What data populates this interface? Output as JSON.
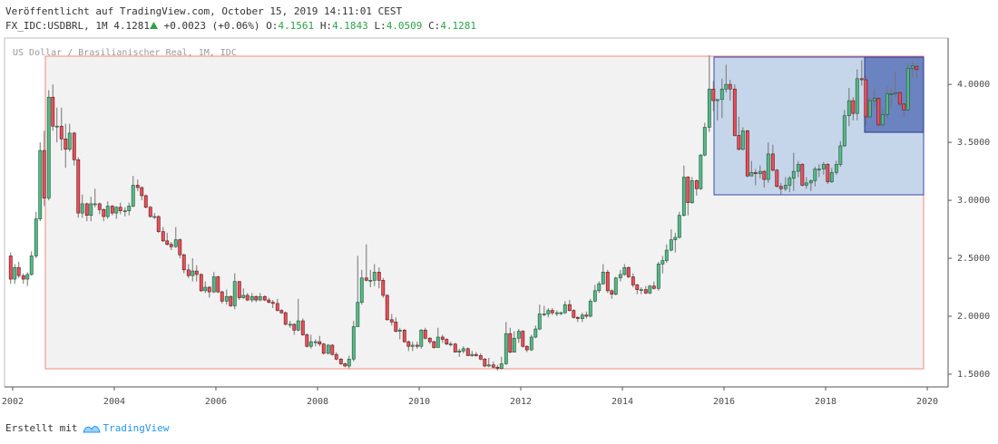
{
  "header": {
    "published": "Veröffentlicht auf TradingView.com, October 15, 2019 14:11:01 CEST",
    "symbol": "FX_IDC:USDBRL, 1M",
    "last": "4.1281",
    "change": "+0.0023 (+0.06%)",
    "o_label": "O:",
    "open": "4.1561",
    "h_label": "H:",
    "high": "4.1843",
    "l_label": "L:",
    "low": "4.0509",
    "c_label": "C:",
    "close": "4.1281"
  },
  "footer": {
    "made_with": "Erstellt mit",
    "brand": "TradingView"
  },
  "chart_data": {
    "type": "candlestick",
    "title": "US Dollar / Brasilianischer Real, 1M, IDC",
    "up_color": "#53b987",
    "down_color": "#eb4d5c",
    "grid": false,
    "xlim": [
      2001.84,
      2020.41
    ],
    "xticks": [
      2002,
      2004,
      2006,
      2008,
      2010,
      2012,
      2014,
      2016,
      2018,
      2020
    ],
    "ylim": [
      1.39,
      4.4
    ],
    "yticks": [
      {
        "value": 1.5,
        "label": "1.5000"
      },
      {
        "value": 2,
        "label": "2.0000"
      },
      {
        "value": 2.5,
        "label": "2.5000"
      },
      {
        "value": 3,
        "label": "3.0000"
      },
      {
        "value": 3.5,
        "label": "3.5000"
      },
      {
        "value": 4,
        "label": "4.0000"
      }
    ],
    "x": [
      2001.92,
      2002.0,
      2002.08,
      2002.17,
      2002.25,
      2002.33,
      2002.42,
      2002.5,
      2002.58,
      2002.67,
      2002.75,
      2002.83,
      2002.92,
      2003.0,
      2003.08,
      2003.17,
      2003.25,
      2003.33,
      2003.42,
      2003.5,
      2003.58,
      2003.67,
      2003.75,
      2003.83,
      2003.92,
      2004.0,
      2004.08,
      2004.17,
      2004.25,
      2004.33,
      2004.42,
      2004.5,
      2004.58,
      2004.67,
      2004.75,
      2004.83,
      2004.92,
      2005.0,
      2005.08,
      2005.17,
      2005.25,
      2005.33,
      2005.42,
      2005.5,
      2005.58,
      2005.67,
      2005.75,
      2005.83,
      2005.92,
      2006.0,
      2006.08,
      2006.17,
      2006.25,
      2006.33,
      2006.42,
      2006.5,
      2006.58,
      2006.67,
      2006.75,
      2006.83,
      2006.92,
      2007.0,
      2007.08,
      2007.17,
      2007.25,
      2007.33,
      2007.42,
      2007.5,
      2007.58,
      2007.67,
      2007.75,
      2007.83,
      2007.92,
      2008.0,
      2008.08,
      2008.17,
      2008.25,
      2008.33,
      2008.42,
      2008.5,
      2008.58,
      2008.67,
      2008.75,
      2008.83,
      2008.92,
      2009.0,
      2009.08,
      2009.17,
      2009.25,
      2009.33,
      2009.42,
      2009.5,
      2009.58,
      2009.67,
      2009.75,
      2009.83,
      2009.92,
      2010.0,
      2010.08,
      2010.17,
      2010.25,
      2010.33,
      2010.42,
      2010.5,
      2010.58,
      2010.67,
      2010.75,
      2010.83,
      2010.92,
      2011.0,
      2011.08,
      2011.17,
      2011.25,
      2011.33,
      2011.42,
      2011.5,
      2011.58,
      2011.67,
      2011.75,
      2011.83,
      2011.92,
      2012.0,
      2012.08,
      2012.17,
      2012.25,
      2012.33,
      2012.42,
      2012.5,
      2012.58,
      2012.67,
      2012.75,
      2012.83,
      2012.92,
      2013.0,
      2013.08,
      2013.17,
      2013.25,
      2013.33,
      2013.42,
      2013.5,
      2013.58,
      2013.67,
      2013.75,
      2013.83,
      2013.92,
      2014.0,
      2014.08,
      2014.17,
      2014.25,
      2014.33,
      2014.42,
      2014.5,
      2014.58,
      2014.67,
      2014.75,
      2014.83,
      2014.92,
      2015.0,
      2015.08,
      2015.17,
      2015.25,
      2015.33,
      2015.42,
      2015.5,
      2015.58,
      2015.67,
      2015.75,
      2015.83,
      2015.92,
      2016.0,
      2016.08,
      2016.17,
      2016.25,
      2016.33,
      2016.42,
      2016.5,
      2016.58,
      2016.67,
      2016.75,
      2016.83,
      2016.92,
      2017.0,
      2017.08,
      2017.17,
      2017.25,
      2017.33,
      2017.42,
      2017.5,
      2017.58,
      2017.67,
      2017.75,
      2017.83,
      2017.92,
      2018.0,
      2018.08,
      2018.17,
      2018.25,
      2018.33,
      2018.42,
      2018.5,
      2018.58,
      2018.67,
      2018.75,
      2018.83,
      2018.92,
      2019.0,
      2019.08,
      2019.17,
      2019.25,
      2019.33,
      2019.42,
      2019.5,
      2019.58,
      2019.67,
      2019.75
    ],
    "ohlc": [
      [
        2.52,
        2.55,
        2.28,
        2.32
      ],
      [
        2.32,
        2.45,
        2.28,
        2.42
      ],
      [
        2.42,
        2.47,
        2.33,
        2.35
      ],
      [
        2.35,
        2.37,
        2.28,
        2.32
      ],
      [
        2.32,
        2.38,
        2.26,
        2.36
      ],
      [
        2.36,
        2.56,
        2.35,
        2.52
      ],
      [
        2.52,
        2.9,
        2.5,
        2.84
      ],
      [
        2.84,
        3.5,
        2.82,
        3.43
      ],
      [
        3.43,
        3.6,
        2.95,
        3.02
      ],
      [
        3.02,
        3.95,
        3.0,
        3.89
      ],
      [
        3.89,
        4.0,
        3.6,
        3.64
      ],
      [
        3.64,
        3.8,
        3.5,
        3.64
      ],
      [
        3.64,
        3.8,
        3.43,
        3.53
      ],
      [
        3.53,
        3.66,
        3.28,
        3.44
      ],
      [
        3.44,
        3.66,
        3.42,
        3.58
      ],
      [
        3.58,
        3.59,
        3.3,
        3.35
      ],
      [
        3.35,
        3.37,
        2.85,
        2.89
      ],
      [
        2.89,
        3.05,
        2.85,
        2.97
      ],
      [
        2.97,
        2.98,
        2.82,
        2.87
      ],
      [
        2.87,
        3.03,
        2.82,
        2.97
      ],
      [
        2.97,
        3.1,
        2.94,
        2.97
      ],
      [
        2.97,
        2.98,
        2.88,
        2.92
      ],
      [
        2.92,
        2.93,
        2.82,
        2.86
      ],
      [
        2.86,
        2.99,
        2.84,
        2.95
      ],
      [
        2.95,
        2.96,
        2.87,
        2.89
      ],
      [
        2.89,
        2.95,
        2.84,
        2.94
      ],
      [
        2.94,
        2.98,
        2.88,
        2.91
      ],
      [
        2.91,
        2.94,
        2.86,
        2.91
      ],
      [
        2.91,
        2.98,
        2.87,
        2.95
      ],
      [
        2.95,
        3.21,
        2.94,
        3.13
      ],
      [
        3.13,
        3.18,
        3.08,
        3.11
      ],
      [
        3.11,
        3.12,
        3.0,
        3.04
      ],
      [
        3.04,
        3.05,
        2.93,
        2.94
      ],
      [
        2.94,
        2.95,
        2.85,
        2.86
      ],
      [
        2.86,
        2.89,
        2.84,
        2.86
      ],
      [
        2.86,
        2.87,
        2.72,
        2.73
      ],
      [
        2.73,
        2.77,
        2.64,
        2.65
      ],
      [
        2.65,
        2.72,
        2.61,
        2.62
      ],
      [
        2.62,
        2.64,
        2.57,
        2.6
      ],
      [
        2.6,
        2.77,
        2.59,
        2.66
      ],
      [
        2.66,
        2.67,
        2.5,
        2.53
      ],
      [
        2.53,
        2.54,
        2.37,
        2.4
      ],
      [
        2.4,
        2.45,
        2.33,
        2.35
      ],
      [
        2.35,
        2.5,
        2.3,
        2.39
      ],
      [
        2.39,
        2.44,
        2.3,
        2.36
      ],
      [
        2.36,
        2.37,
        2.21,
        2.22
      ],
      [
        2.22,
        2.3,
        2.2,
        2.25
      ],
      [
        2.25,
        2.26,
        2.16,
        2.21
      ],
      [
        2.21,
        2.38,
        2.2,
        2.34
      ],
      [
        2.34,
        2.35,
        2.2,
        2.21
      ],
      [
        2.21,
        2.22,
        2.11,
        2.13
      ],
      [
        2.13,
        2.23,
        2.1,
        2.17
      ],
      [
        2.17,
        2.18,
        2.08,
        2.09
      ],
      [
        2.09,
        2.37,
        2.06,
        2.3
      ],
      [
        2.3,
        2.3,
        2.14,
        2.16
      ],
      [
        2.16,
        2.24,
        2.15,
        2.18
      ],
      [
        2.18,
        2.2,
        2.13,
        2.14
      ],
      [
        2.14,
        2.2,
        2.12,
        2.17
      ],
      [
        2.17,
        2.18,
        2.12,
        2.14
      ],
      [
        2.14,
        2.2,
        2.13,
        2.17
      ],
      [
        2.17,
        2.18,
        2.13,
        2.14
      ],
      [
        2.14,
        2.16,
        2.11,
        2.12
      ],
      [
        2.12,
        2.14,
        2.07,
        2.11
      ],
      [
        2.11,
        2.15,
        2.04,
        2.05
      ],
      [
        2.05,
        2.06,
        2.02,
        2.03
      ],
      [
        2.03,
        2.04,
        1.92,
        1.93
      ],
      [
        1.93,
        1.96,
        1.9,
        1.93
      ],
      [
        1.93,
        1.94,
        1.84,
        1.88
      ],
      [
        1.88,
        2.15,
        1.87,
        1.96
      ],
      [
        1.96,
        1.98,
        1.83,
        1.84
      ],
      [
        1.84,
        1.85,
        1.73,
        1.74
      ],
      [
        1.74,
        1.84,
        1.72,
        1.78
      ],
      [
        1.78,
        1.8,
        1.74,
        1.78
      ],
      [
        1.78,
        1.83,
        1.74,
        1.76
      ],
      [
        1.76,
        1.77,
        1.67,
        1.68
      ],
      [
        1.68,
        1.76,
        1.67,
        1.75
      ],
      [
        1.75,
        1.76,
        1.66,
        1.67
      ],
      [
        1.67,
        1.69,
        1.62,
        1.63
      ],
      [
        1.63,
        1.64,
        1.58,
        1.59
      ],
      [
        1.59,
        1.6,
        1.56,
        1.57
      ],
      [
        1.57,
        1.66,
        1.55,
        1.63
      ],
      [
        1.63,
        1.96,
        1.61,
        1.91
      ],
      [
        1.91,
        2.52,
        1.91,
        2.12
      ],
      [
        2.12,
        2.4,
        2.1,
        2.33
      ],
      [
        2.33,
        2.62,
        2.3,
        2.31
      ],
      [
        2.31,
        2.4,
        2.25,
        2.31
      ],
      [
        2.31,
        2.45,
        2.26,
        2.38
      ],
      [
        2.38,
        2.42,
        2.24,
        2.31
      ],
      [
        2.31,
        2.33,
        2.16,
        2.18
      ],
      [
        2.18,
        2.19,
        1.96,
        1.97
      ],
      [
        1.97,
        2.02,
        1.92,
        1.95
      ],
      [
        1.95,
        1.99,
        1.86,
        1.87
      ],
      [
        1.87,
        1.9,
        1.8,
        1.88
      ],
      [
        1.88,
        1.89,
        1.77,
        1.78
      ],
      [
        1.78,
        1.79,
        1.7,
        1.74
      ],
      [
        1.74,
        1.78,
        1.7,
        1.75
      ],
      [
        1.75,
        1.78,
        1.72,
        1.74
      ],
      [
        1.74,
        1.89,
        1.72,
        1.88
      ],
      [
        1.88,
        1.9,
        1.8,
        1.81
      ],
      [
        1.81,
        1.82,
        1.76,
        1.78
      ],
      [
        1.78,
        1.79,
        1.72,
        1.73
      ],
      [
        1.73,
        1.9,
        1.73,
        1.82
      ],
      [
        1.82,
        1.84,
        1.77,
        1.8
      ],
      [
        1.8,
        1.81,
        1.75,
        1.76
      ],
      [
        1.76,
        1.78,
        1.74,
        1.76
      ],
      [
        1.76,
        1.77,
        1.69,
        1.69
      ],
      [
        1.69,
        1.72,
        1.65,
        1.7
      ],
      [
        1.7,
        1.74,
        1.68,
        1.72
      ],
      [
        1.72,
        1.73,
        1.66,
        1.66
      ],
      [
        1.66,
        1.7,
        1.65,
        1.67
      ],
      [
        1.67,
        1.69,
        1.65,
        1.66
      ],
      [
        1.66,
        1.68,
        1.62,
        1.63
      ],
      [
        1.63,
        1.64,
        1.56,
        1.57
      ],
      [
        1.57,
        1.64,
        1.56,
        1.58
      ],
      [
        1.58,
        1.61,
        1.55,
        1.56
      ],
      [
        1.56,
        1.58,
        1.53,
        1.55
      ],
      [
        1.55,
        1.65,
        1.54,
        1.59
      ],
      [
        1.59,
        1.95,
        1.58,
        1.85
      ],
      [
        1.85,
        1.9,
        1.68,
        1.69
      ],
      [
        1.69,
        1.87,
        1.69,
        1.81
      ],
      [
        1.81,
        1.89,
        1.77,
        1.87
      ],
      [
        1.87,
        1.88,
        1.73,
        1.74
      ],
      [
        1.74,
        1.75,
        1.69,
        1.71
      ],
      [
        1.71,
        1.84,
        1.7,
        1.82
      ],
      [
        1.82,
        1.92,
        1.81,
        1.89
      ],
      [
        1.89,
        2.1,
        1.88,
        2.02
      ],
      [
        2.02,
        2.09,
        2.0,
        2.02
      ],
      [
        2.02,
        2.07,
        1.99,
        2.05
      ],
      [
        2.05,
        2.07,
        2.01,
        2.03
      ],
      [
        2.03,
        2.05,
        2.0,
        2.03
      ],
      [
        2.03,
        2.04,
        2.01,
        2.03
      ],
      [
        2.03,
        2.13,
        2.02,
        2.1
      ],
      [
        2.1,
        2.14,
        2.04,
        2.05
      ],
      [
        2.05,
        2.06,
        1.98,
        1.99
      ],
      [
        1.99,
        2.0,
        1.95,
        1.98
      ],
      [
        1.98,
        2.03,
        1.95,
        2.01
      ],
      [
        2.01,
        2.04,
        1.98,
        2.0
      ],
      [
        2.0,
        2.15,
        1.99,
        2.13
      ],
      [
        2.13,
        2.27,
        2.12,
        2.22
      ],
      [
        2.22,
        2.3,
        2.2,
        2.28
      ],
      [
        2.28,
        2.45,
        2.27,
        2.38
      ],
      [
        2.38,
        2.4,
        2.2,
        2.22
      ],
      [
        2.22,
        2.23,
        2.15,
        2.19
      ],
      [
        2.19,
        2.34,
        2.18,
        2.33
      ],
      [
        2.33,
        2.4,
        2.3,
        2.36
      ],
      [
        2.36,
        2.45,
        2.35,
        2.42
      ],
      [
        2.42,
        2.43,
        2.33,
        2.34
      ],
      [
        2.34,
        2.37,
        2.25,
        2.27
      ],
      [
        2.27,
        2.28,
        2.19,
        2.23
      ],
      [
        2.23,
        2.25,
        2.19,
        2.23
      ],
      [
        2.23,
        2.26,
        2.19,
        2.2
      ],
      [
        2.2,
        2.27,
        2.19,
        2.26
      ],
      [
        2.26,
        2.3,
        2.23,
        2.24
      ],
      [
        2.24,
        2.47,
        2.22,
        2.45
      ],
      [
        2.45,
        2.52,
        2.37,
        2.48
      ],
      [
        2.48,
        2.62,
        2.46,
        2.57
      ],
      [
        2.57,
        2.75,
        2.56,
        2.66
      ],
      [
        2.66,
        2.72,
        2.55,
        2.68
      ],
      [
        2.68,
        2.9,
        2.67,
        2.87
      ],
      [
        2.87,
        3.3,
        2.86,
        3.2
      ],
      [
        3.2,
        3.21,
        2.87,
        2.98
      ],
      [
        2.98,
        3.2,
        2.97,
        3.17
      ],
      [
        3.17,
        3.18,
        3.04,
        3.1
      ],
      [
        3.1,
        3.4,
        3.09,
        3.39
      ],
      [
        3.39,
        3.67,
        3.38,
        3.63
      ],
      [
        3.63,
        4.25,
        3.59,
        3.96
      ],
      [
        3.96,
        4.03,
        3.77,
        3.86
      ],
      [
        3.86,
        3.87,
        3.69,
        3.87
      ],
      [
        3.87,
        4.05,
        3.71,
        3.96
      ],
      [
        3.96,
        4.17,
        3.93,
        4.0
      ],
      [
        4.0,
        4.04,
        3.86,
        3.96
      ],
      [
        3.96,
        4.0,
        3.55,
        3.56
      ],
      [
        3.56,
        3.72,
        3.43,
        3.44
      ],
      [
        3.44,
        3.63,
        3.43,
        3.6
      ],
      [
        3.6,
        3.61,
        3.2,
        3.21
      ],
      [
        3.21,
        3.34,
        3.21,
        3.24
      ],
      [
        3.24,
        3.27,
        3.13,
        3.23
      ],
      [
        3.23,
        3.3,
        3.19,
        3.25
      ],
      [
        3.25,
        3.26,
        3.11,
        3.18
      ],
      [
        3.18,
        3.5,
        3.15,
        3.4
      ],
      [
        3.4,
        3.48,
        3.25,
        3.26
      ],
      [
        3.26,
        3.27,
        3.11,
        3.12
      ],
      [
        3.12,
        3.15,
        3.05,
        3.1
      ],
      [
        3.1,
        3.2,
        3.08,
        3.13
      ],
      [
        3.13,
        3.21,
        3.07,
        3.19
      ],
      [
        3.19,
        3.41,
        3.08,
        3.25
      ],
      [
        3.25,
        3.34,
        3.2,
        3.31
      ],
      [
        3.31,
        3.32,
        3.12,
        3.13
      ],
      [
        3.13,
        3.2,
        3.1,
        3.15
      ],
      [
        3.15,
        3.18,
        3.08,
        3.17
      ],
      [
        3.17,
        3.29,
        3.12,
        3.27
      ],
      [
        3.27,
        3.31,
        3.2,
        3.27
      ],
      [
        3.27,
        3.33,
        3.22,
        3.31
      ],
      [
        3.31,
        3.32,
        3.14,
        3.16
      ],
      [
        3.16,
        3.28,
        3.15,
        3.24
      ],
      [
        3.24,
        3.34,
        3.22,
        3.31
      ],
      [
        3.31,
        3.51,
        3.29,
        3.47
      ],
      [
        3.47,
        3.78,
        3.46,
        3.73
      ],
      [
        3.73,
        3.97,
        3.64,
        3.86
      ],
      [
        3.86,
        3.89,
        3.69,
        3.75
      ],
      [
        3.75,
        4.13,
        3.69,
        4.05
      ],
      [
        4.05,
        4.21,
        3.99,
        4.04
      ],
      [
        4.04,
        4.07,
        3.64,
        3.72
      ],
      [
        3.72,
        3.89,
        3.71,
        3.86
      ],
      [
        3.86,
        3.96,
        3.81,
        3.88
      ],
      [
        3.88,
        3.89,
        3.64,
        3.65
      ],
      [
        3.65,
        3.8,
        3.64,
        3.74
      ],
      [
        3.74,
        3.98,
        3.71,
        3.92
      ],
      [
        3.92,
        3.96,
        3.8,
        3.92
      ],
      [
        3.92,
        4.11,
        3.89,
        3.93
      ],
      [
        3.93,
        3.94,
        3.81,
        3.83
      ],
      [
        3.83,
        3.84,
        3.72,
        3.78
      ],
      [
        3.78,
        4.17,
        3.78,
        4.14
      ],
      [
        4.14,
        4.2,
        4.06,
        4.16
      ],
      [
        4.1561,
        4.1843,
        4.0509,
        4.1281
      ]
    ]
  }
}
